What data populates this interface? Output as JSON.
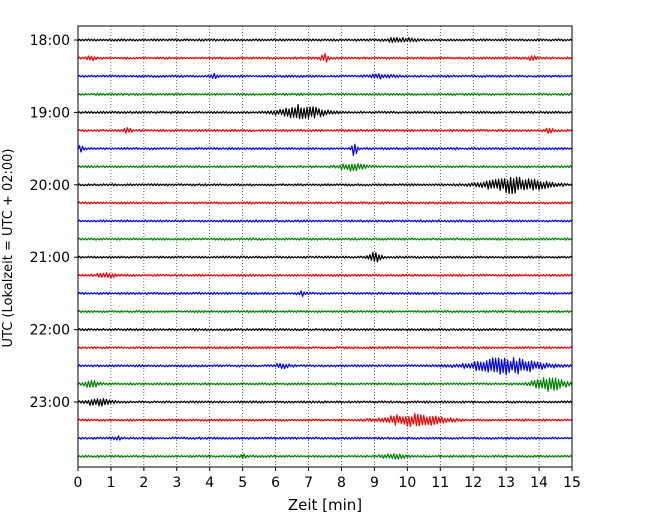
{
  "chart_data": {
    "type": "line",
    "subtype": "helicorder",
    "xlabel": "Zeit  [min]",
    "ylabel": "UTC (Lokalzeit = UTC + 02:00)",
    "xlim": [
      0,
      15
    ],
    "x_ticks": [
      "0",
      "1",
      "2",
      "3",
      "4",
      "5",
      "6",
      "7",
      "8",
      "9",
      "10",
      "11",
      "12",
      "13",
      "14",
      "15"
    ],
    "y_tick_labels": [
      "18:00",
      "19:00",
      "20:00",
      "21:00",
      "22:00",
      "23:00"
    ],
    "trace_rows": [
      "18:00",
      "18:15",
      "18:30",
      "18:45",
      "19:00",
      "19:15",
      "19:30",
      "19:45",
      "20:00",
      "20:15",
      "20:30",
      "20:45",
      "21:00",
      "21:15",
      "21:30",
      "21:45",
      "22:00",
      "22:15",
      "22:30",
      "22:45",
      "23:00",
      "23:15",
      "23:30",
      "23:45"
    ],
    "trace_colors": [
      "#000000",
      "#ff0000",
      "#0000ff",
      "#008000"
    ],
    "vertical_grid": true,
    "grid_style": "dotted",
    "events": [
      {
        "row": 0,
        "center_min": 9.8,
        "width_min": 1.2,
        "amplitude": 2.0
      },
      {
        "row": 1,
        "center_min": 0.4,
        "width_min": 0.3,
        "amplitude": 2.0
      },
      {
        "row": 1,
        "center_min": 7.5,
        "width_min": 0.3,
        "amplitude": 3.5
      },
      {
        "row": 1,
        "center_min": 13.8,
        "width_min": 0.3,
        "amplitude": 2.0
      },
      {
        "row": 2,
        "center_min": 4.1,
        "width_min": 0.3,
        "amplitude": 2.0
      },
      {
        "row": 2,
        "center_min": 9.2,
        "width_min": 0.8,
        "amplitude": 2.0
      },
      {
        "row": 4,
        "center_min": 6.8,
        "width_min": 1.6,
        "amplitude": 7.0
      },
      {
        "row": 5,
        "center_min": 1.5,
        "width_min": 0.3,
        "amplitude": 2.5
      },
      {
        "row": 5,
        "center_min": 14.3,
        "width_min": 0.3,
        "amplitude": 3.0
      },
      {
        "row": 6,
        "center_min": 0.1,
        "width_min": 0.2,
        "amplitude": 3.5
      },
      {
        "row": 6,
        "center_min": 8.4,
        "width_min": 0.2,
        "amplitude": 8.0
      },
      {
        "row": 7,
        "center_min": 8.3,
        "width_min": 0.9,
        "amplitude": 3.5
      },
      {
        "row": 8,
        "center_min": 13.3,
        "width_min": 2.2,
        "amplitude": 8.0
      },
      {
        "row": 12,
        "center_min": 9.0,
        "width_min": 0.5,
        "amplitude": 4.5
      },
      {
        "row": 13,
        "center_min": 0.9,
        "width_min": 0.7,
        "amplitude": 2.5
      },
      {
        "row": 14,
        "center_min": 6.8,
        "width_min": 0.3,
        "amplitude": 2.0
      },
      {
        "row": 18,
        "center_min": 13.0,
        "width_min": 2.6,
        "amplitude": 8.0
      },
      {
        "row": 18,
        "center_min": 6.2,
        "width_min": 0.5,
        "amplitude": 2.5
      },
      {
        "row": 19,
        "center_min": 0.4,
        "width_min": 0.6,
        "amplitude": 3.0
      },
      {
        "row": 19,
        "center_min": 14.3,
        "width_min": 1.2,
        "amplitude": 6.5
      },
      {
        "row": 20,
        "center_min": 0.6,
        "width_min": 0.9,
        "amplitude": 3.5
      },
      {
        "row": 21,
        "center_min": 10.2,
        "width_min": 2.2,
        "amplitude": 6.0
      },
      {
        "row": 22,
        "center_min": 1.2,
        "width_min": 0.3,
        "amplitude": 1.5
      },
      {
        "row": 23,
        "center_min": 5.0,
        "width_min": 0.3,
        "amplitude": 1.5
      },
      {
        "row": 23,
        "center_min": 9.6,
        "width_min": 1.0,
        "amplitude": 2.0
      }
    ]
  }
}
